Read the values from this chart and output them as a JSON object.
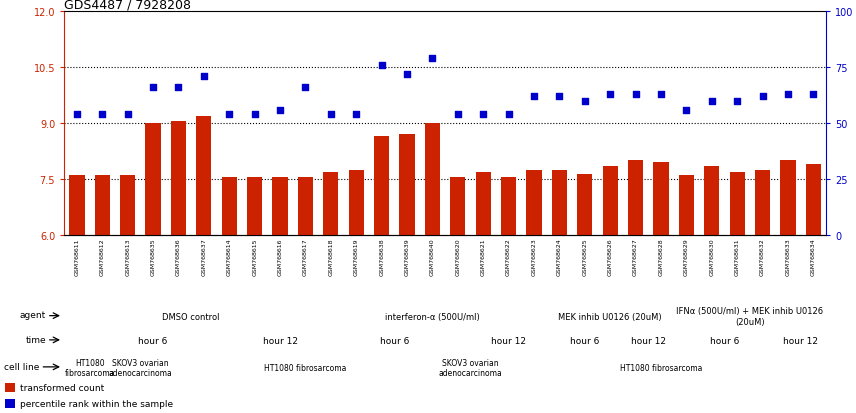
{
  "title": "GDS4487 / 7928208",
  "samples": [
    "GSM768611",
    "GSM768612",
    "GSM768613",
    "GSM768635",
    "GSM768636",
    "GSM768637",
    "GSM768614",
    "GSM768615",
    "GSM768616",
    "GSM768617",
    "GSM768618",
    "GSM768619",
    "GSM768638",
    "GSM768639",
    "GSM768640",
    "GSM768620",
    "GSM768621",
    "GSM768622",
    "GSM768623",
    "GSM768624",
    "GSM768625",
    "GSM768626",
    "GSM768627",
    "GSM768628",
    "GSM768629",
    "GSM768630",
    "GSM768631",
    "GSM768632",
    "GSM768633",
    "GSM768634"
  ],
  "bar_values": [
    7.6,
    7.6,
    7.6,
    9.0,
    9.05,
    9.2,
    7.55,
    7.55,
    7.55,
    7.55,
    7.7,
    7.75,
    8.65,
    8.7,
    9.0,
    7.55,
    7.7,
    7.55,
    7.75,
    7.75,
    7.65,
    7.85,
    8.0,
    7.95,
    7.6,
    7.85,
    7.7,
    7.75,
    8.0,
    7.9
  ],
  "dot_values": [
    54,
    54,
    54,
    66,
    66,
    71,
    54,
    54,
    56,
    66,
    54,
    54,
    76,
    72,
    79,
    54,
    54,
    54,
    62,
    62,
    60,
    63,
    63,
    63,
    56,
    60,
    60,
    62,
    63,
    63
  ],
  "bar_color": "#cc2200",
  "dot_color": "#0000cc",
  "ylim_left": [
    6,
    12
  ],
  "ylim_right": [
    0,
    100
  ],
  "yticks_left": [
    6,
    7.5,
    9,
    10.5,
    12
  ],
  "yticks_right": [
    0,
    25,
    50,
    75,
    100
  ],
  "hlines": [
    7.5,
    9.0,
    10.5
  ],
  "agent_rows": [
    {
      "label": "DMSO control",
      "start": 0,
      "end": 10,
      "color": "#bbf0bb"
    },
    {
      "label": "interferon-α (500U/ml)",
      "start": 10,
      "end": 19,
      "color": "#99dd99"
    },
    {
      "label": "MEK inhib U0126 (20uM)",
      "start": 19,
      "end": 24,
      "color": "#66cc66"
    },
    {
      "label": "IFNα (500U/ml) + MEK inhib U0126\n(20uM)",
      "start": 24,
      "end": 30,
      "color": "#44cc44"
    }
  ],
  "time_rows": [
    {
      "label": "hour 6",
      "start": 0,
      "end": 7,
      "color": "#bbbbee"
    },
    {
      "label": "hour 12",
      "start": 7,
      "end": 10,
      "color": "#8888cc"
    },
    {
      "label": "hour 6",
      "start": 10,
      "end": 16,
      "color": "#bbbbee"
    },
    {
      "label": "hour 12",
      "start": 16,
      "end": 19,
      "color": "#8888cc"
    },
    {
      "label": "hour 6",
      "start": 19,
      "end": 22,
      "color": "#bbbbee"
    },
    {
      "label": "hour 12",
      "start": 22,
      "end": 24,
      "color": "#8888cc"
    },
    {
      "label": "hour 6",
      "start": 24,
      "end": 28,
      "color": "#bbbbee"
    },
    {
      "label": "hour 12",
      "start": 28,
      "end": 30,
      "color": "#8888cc"
    }
  ],
  "cell_rows": [
    {
      "label": "HT1080\nfibrosarcoma",
      "start": 0,
      "end": 2,
      "color": "#ffcccc"
    },
    {
      "label": "SKOV3 ovarian\nadenocarcinoma",
      "start": 2,
      "end": 4,
      "color": "#ee9999"
    },
    {
      "label": "HT1080 fibrosarcoma",
      "start": 4,
      "end": 15,
      "color": "#ffcccc"
    },
    {
      "label": "SKOV3 ovarian\nadenocarcinoma",
      "start": 15,
      "end": 17,
      "color": "#ee9999"
    },
    {
      "label": "HT1080 fibrosarcoma",
      "start": 17,
      "end": 30,
      "color": "#ffcccc"
    }
  ],
  "row_labels": [
    "agent",
    "time",
    "cell line"
  ],
  "legend_items": [
    {
      "label": "transformed count",
      "color": "#cc2200"
    },
    {
      "label": "percentile rank within the sample",
      "color": "#0000cc"
    }
  ]
}
